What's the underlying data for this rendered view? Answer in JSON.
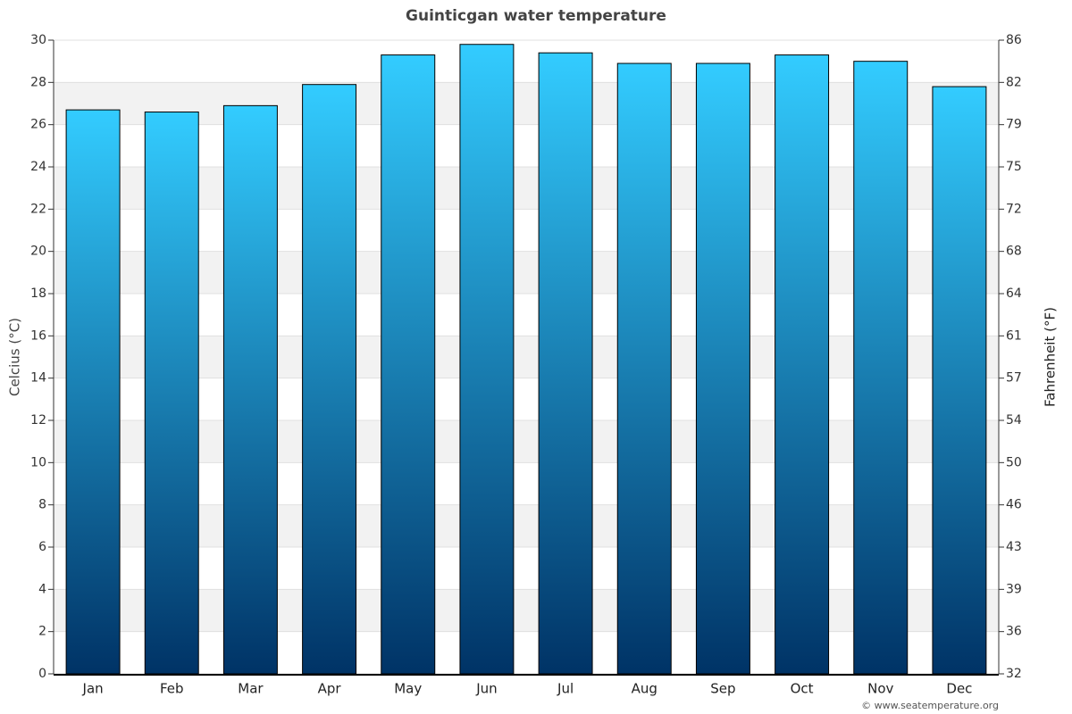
{
  "chart_data": {
    "type": "bar",
    "title": "Guinticgan water temperature",
    "y_label": "Celcius (°C)",
    "y2_label": "Fahrenheit (°F)",
    "credit": "© www.seatemperature.org",
    "categories": [
      "Jan",
      "Feb",
      "Mar",
      "Apr",
      "May",
      "Jun",
      "Jul",
      "Aug",
      "Sep",
      "Oct",
      "Nov",
      "Dec"
    ],
    "values": [
      26.7,
      26.6,
      26.9,
      27.9,
      29.3,
      29.8,
      29.4,
      28.9,
      28.9,
      29.3,
      29.0,
      27.8
    ],
    "color": [
      "#33ccff",
      "#003366"
    ],
    "ylim": [
      0,
      30
    ],
    "yticks": [
      0,
      2,
      4,
      6,
      8,
      10,
      12,
      14,
      16,
      18,
      20,
      22,
      24,
      26,
      28,
      30
    ],
    "y2lim": [
      32,
      86
    ],
    "y2ticks": [
      32,
      {
        "value": 35.6,
        "label": "36"
      },
      {
        "value": 39.2,
        "label": "39"
      },
      {
        "value": 42.8,
        "label": "43"
      },
      {
        "value": 46.4,
        "label": "46"
      },
      50,
      {
        "value": 53.6,
        "label": "54"
      },
      {
        "value": 57.2,
        "label": "57"
      },
      {
        "value": 60.8,
        "label": "61"
      },
      {
        "value": 64.4,
        "label": "64"
      },
      68,
      {
        "value": 71.6,
        "label": "72"
      },
      {
        "value": 75.2,
        "label": "75"
      },
      {
        "value": 78.8,
        "label": "79"
      },
      {
        "value": 82.4,
        "label": "82"
      },
      86
    ],
    "grid": true
  }
}
